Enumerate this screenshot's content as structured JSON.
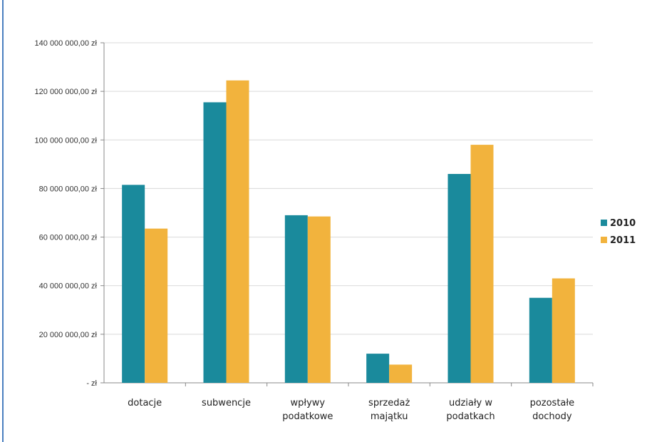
{
  "chart_data": {
    "type": "bar",
    "title": "",
    "xlabel": "",
    "ylabel": "",
    "categories": [
      [
        "dotacje"
      ],
      [
        "subwencje"
      ],
      [
        "wpływy",
        "podatkowe"
      ],
      [
        "sprzedaż",
        "majątku"
      ],
      [
        "udziały w",
        "podatkach"
      ],
      [
        "pozostałe",
        "dochody"
      ]
    ],
    "series": [
      {
        "name": "2010",
        "color": "#1a8a9c",
        "values": [
          81500000,
          115500000,
          69000000,
          12000000,
          86000000,
          35000000
        ]
      },
      {
        "name": "2011",
        "color": "#f2b33d",
        "values": [
          63500000,
          124500000,
          68500000,
          7500000,
          98000000,
          43000000
        ]
      }
    ],
    "ylim": [
      0,
      140000000
    ],
    "yticks": [
      0,
      20000000,
      40000000,
      60000000,
      80000000,
      100000000,
      120000000,
      140000000
    ],
    "ytick_labels": [
      "-   zł",
      "20 000 000,00 zł",
      "40 000 000,00 zł",
      "60 000 000,00 zł",
      "80 000 000,00 zł",
      "100 000 000,00 zł",
      "120 000 000,00 zł",
      "140 000 000,00 zł"
    ],
    "grid": true,
    "legend_position": "right"
  }
}
